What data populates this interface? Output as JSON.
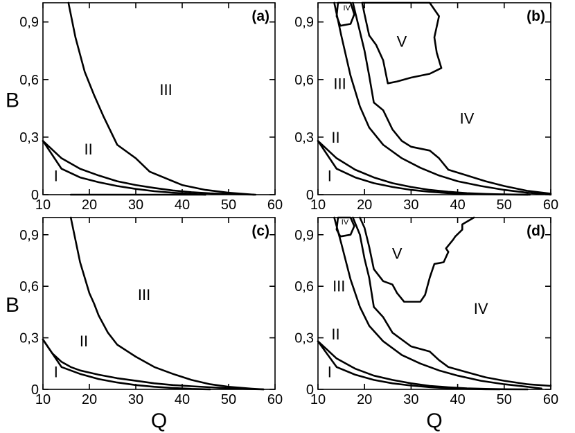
{
  "chart_data": [
    {
      "type": "line",
      "panel_label": "(a)",
      "xlim": [
        10,
        60
      ],
      "ylim": [
        0,
        1.0
      ],
      "xticks": [
        "10",
        "20",
        "30",
        "40",
        "50",
        "60"
      ],
      "yticks": [
        "0",
        "0,3",
        "0,6",
        "0,9"
      ],
      "xlabel": "",
      "ylabel": "B",
      "regions": [
        {
          "label": "I",
          "x": 12.8,
          "y": 0.07
        },
        {
          "label": "II",
          "x": 19.8,
          "y": 0.21
        },
        {
          "label": "III",
          "x": 36.5,
          "y": 0.52
        }
      ],
      "series": [
        {
          "x": [
            16.0,
            25.0,
            35.0,
            45.0
          ],
          "y": [
            0.0,
            0.0,
            0.0,
            0.0
          ]
        },
        {
          "x": [
            10.0,
            14.0,
            18.0,
            22.0,
            26.0,
            30.0,
            34.0,
            38.0,
            42.0,
            46.0,
            50.0,
            55.8
          ],
          "y": [
            0.28,
            0.19,
            0.135,
            0.1,
            0.07,
            0.05,
            0.035,
            0.022,
            0.013,
            0.007,
            0.003,
            0.0
          ]
        },
        {
          "x": [
            10.0,
            14.0,
            18.0,
            22.0,
            26.0,
            30.0,
            34.0,
            38.0,
            42.0,
            45.0
          ],
          "y": [
            0.28,
            0.135,
            0.09,
            0.065,
            0.045,
            0.03,
            0.018,
            0.01,
            0.004,
            0.0
          ]
        },
        {
          "x": [
            15.5,
            17.0,
            19.0,
            21.0,
            23.0,
            26.0,
            30.0,
            33.0,
            36.0,
            40.0,
            45.0,
            50.0,
            55.5
          ],
          "y": [
            1.0,
            0.82,
            0.64,
            0.52,
            0.41,
            0.26,
            0.19,
            0.12,
            0.09,
            0.05,
            0.025,
            0.01,
            0.0
          ]
        }
      ]
    },
    {
      "type": "line",
      "panel_label": "(b)",
      "xlim": [
        10,
        60
      ],
      "ylim": [
        0,
        1.0
      ],
      "xticks": [
        "10",
        "20",
        "30",
        "40",
        "50",
        "60"
      ],
      "yticks": [
        "0",
        "0,3",
        "0,6",
        "0,9"
      ],
      "xlabel": "",
      "ylabel": "",
      "regions": [
        {
          "label": "I",
          "x": 12.5,
          "y": 0.07
        },
        {
          "label": "II",
          "x": 13.8,
          "y": 0.27
        },
        {
          "label": "III",
          "x": 14.7,
          "y": 0.55
        },
        {
          "label": "IV",
          "x": 42.0,
          "y": 0.37
        },
        {
          "label": "IV",
          "x": 16.2,
          "y": 0.96
        },
        {
          "label": "V",
          "x": 28.0,
          "y": 0.77
        }
      ],
      "series": [
        {
          "x": [
            10.0,
            14.0,
            18.0,
            22.0,
            26.0,
            30.0,
            34.0,
            38.0,
            42.0,
            46.0,
            50.0,
            55.5
          ],
          "y": [
            0.28,
            0.19,
            0.13,
            0.09,
            0.06,
            0.04,
            0.025,
            0.015,
            0.008,
            0.004,
            0.001,
            0.0
          ]
        },
        {
          "x": [
            10.0,
            14.0,
            18.0,
            22.0,
            26.0,
            30.0,
            34.0,
            38.0,
            42.0,
            46.0,
            50.0,
            55.0
          ],
          "y": [
            0.28,
            0.135,
            0.09,
            0.06,
            0.04,
            0.025,
            0.015,
            0.008,
            0.004,
            0.002,
            0.001,
            0.0
          ]
        },
        {
          "x": [
            13.5,
            15.0,
            17.0,
            19.0,
            21.0,
            24.0,
            28.0,
            32.0,
            36.0,
            40.0,
            45.0,
            50.0,
            55.0,
            60.0
          ],
          "y": [
            1.0,
            0.83,
            0.62,
            0.46,
            0.35,
            0.26,
            0.19,
            0.14,
            0.1,
            0.07,
            0.045,
            0.025,
            0.01,
            0.0
          ]
        },
        {
          "x": [
            17.5,
            19.0,
            20.0,
            21.0,
            22.0,
            24.0,
            26.0,
            28.0,
            30.0,
            34.0,
            36.0,
            38.0,
            42.0,
            46.0,
            50.0,
            55.0,
            60.0
          ],
          "y": [
            1.0,
            0.85,
            0.75,
            0.62,
            0.48,
            0.44,
            0.34,
            0.28,
            0.25,
            0.23,
            0.19,
            0.13,
            0.1,
            0.07,
            0.045,
            0.02,
            0.005
          ]
        },
        {
          "x": [
            19.5,
            20.0,
            21.0,
            22.5,
            24.0,
            25.0,
            27.0,
            30.0,
            34.0,
            36.5,
            35.5,
            35.0,
            36.0,
            34.0,
            19.5
          ],
          "y": [
            1.0,
            0.94,
            0.83,
            0.78,
            0.7,
            0.58,
            0.59,
            0.61,
            0.63,
            0.66,
            0.74,
            0.82,
            0.93,
            1.0,
            1.0
          ]
        },
        {
          "x": [
            14.3,
            14.0,
            14.8,
            17.0,
            17.8,
            17.0,
            14.3
          ],
          "y": [
            1.0,
            0.93,
            0.88,
            0.89,
            0.94,
            1.0,
            1.0
          ]
        }
      ]
    },
    {
      "type": "line",
      "panel_label": "(c)",
      "xlim": [
        10,
        60
      ],
      "ylim": [
        0,
        1.0
      ],
      "xticks": [
        "10",
        "20",
        "30",
        "40",
        "50",
        "60"
      ],
      "yticks": [
        "0",
        "0,3",
        "0,6",
        "0,9"
      ],
      "xlabel": "Q",
      "ylabel": "B",
      "regions": [
        {
          "label": "I",
          "x": 12.8,
          "y": 0.07
        },
        {
          "label": "II",
          "x": 18.8,
          "y": 0.25
        },
        {
          "label": "III",
          "x": 31.8,
          "y": 0.52
        }
      ],
      "series": [
        {
          "x": [
            10.0,
            12.0,
            14.0,
            16.0,
            18.0,
            22.0,
            26.0,
            30.0,
            34.0,
            38.0,
            42.0,
            46.0,
            50.0,
            54.0,
            57.5
          ],
          "y": [
            0.29,
            0.21,
            0.16,
            0.13,
            0.11,
            0.085,
            0.065,
            0.05,
            0.035,
            0.025,
            0.018,
            0.012,
            0.006,
            0.002,
            0.0
          ]
        },
        {
          "x": [
            10.0,
            14.0,
            18.0,
            22.0,
            26.0,
            30.0,
            34.0,
            38.0,
            42.0,
            46.0
          ],
          "y": [
            0.29,
            0.13,
            0.09,
            0.06,
            0.04,
            0.025,
            0.015,
            0.008,
            0.003,
            0.0
          ]
        },
        {
          "x": [
            16.0,
            18.0,
            20.0,
            21.0,
            22.0,
            24.0,
            26.0,
            30.0,
            34.0,
            38.0,
            42.0,
            46.0,
            50.0,
            55.0,
            57.5
          ],
          "y": [
            1.0,
            0.74,
            0.56,
            0.5,
            0.43,
            0.33,
            0.26,
            0.19,
            0.13,
            0.09,
            0.055,
            0.03,
            0.015,
            0.004,
            0.0
          ]
        }
      ]
    },
    {
      "type": "line",
      "panel_label": "(d)",
      "xlim": [
        10,
        60
      ],
      "ylim": [
        0,
        1.0
      ],
      "xticks": [
        "10",
        "20",
        "30",
        "40",
        "50",
        "60"
      ],
      "yticks": [
        "0",
        "0,3",
        "0,6",
        "0,9"
      ],
      "xlabel": "Q",
      "ylabel": "",
      "regions": [
        {
          "label": "I",
          "x": 12.5,
          "y": 0.07
        },
        {
          "label": "II",
          "x": 13.8,
          "y": 0.29
        },
        {
          "label": "III",
          "x": 14.5,
          "y": 0.57
        },
        {
          "label": "IV",
          "x": 45.0,
          "y": 0.44
        },
        {
          "label": "IV",
          "x": 15.8,
          "y": 0.96
        },
        {
          "label": "V",
          "x": 27.0,
          "y": 0.76
        }
      ],
      "series": [
        {
          "x": [
            10.0,
            14.0,
            18.0,
            22.0,
            26.0,
            30.0,
            34.0,
            38.0,
            42.0,
            46.0,
            50.0,
            55.0
          ],
          "y": [
            0.28,
            0.18,
            0.12,
            0.08,
            0.055,
            0.035,
            0.02,
            0.012,
            0.006,
            0.003,
            0.001,
            0.0
          ]
        },
        {
          "x": [
            10.0,
            14.0,
            18.0,
            22.0,
            26.0,
            30.0,
            34.0,
            38.0,
            42.0,
            46.0,
            49.0
          ],
          "y": [
            0.28,
            0.13,
            0.085,
            0.055,
            0.035,
            0.022,
            0.013,
            0.007,
            0.003,
            0.001,
            0.0
          ]
        },
        {
          "x": [
            13.5,
            15.0,
            17.0,
            19.0,
            21.0,
            24.0,
            28.0,
            32.0,
            36.0,
            40.0,
            45.0,
            50.0,
            55.0,
            58.0
          ],
          "y": [
            1.0,
            0.85,
            0.64,
            0.48,
            0.37,
            0.28,
            0.2,
            0.15,
            0.11,
            0.08,
            0.05,
            0.03,
            0.015,
            0.005
          ]
        },
        {
          "x": [
            17.5,
            19.0,
            20.0,
            21.0,
            22.0,
            24.0,
            26.0,
            30.0,
            34.0,
            36.0,
            38.0,
            42.0,
            46.0,
            50.0,
            55.0,
            60.0
          ],
          "y": [
            1.0,
            0.9,
            0.76,
            0.65,
            0.48,
            0.42,
            0.33,
            0.25,
            0.22,
            0.17,
            0.13,
            0.1,
            0.07,
            0.05,
            0.03,
            0.02
          ]
        },
        {
          "x": [
            19.0,
            20.0,
            21.0,
            22.0,
            24.0,
            26.0,
            27.0,
            28.5,
            30.0,
            32.0,
            33.0,
            34.0,
            35.0,
            37.0,
            38.0,
            37.5,
            39.0,
            39.5,
            41.0,
            41.0,
            43.5
          ],
          "y": [
            1.0,
            0.94,
            0.83,
            0.7,
            0.63,
            0.61,
            0.56,
            0.51,
            0.51,
            0.51,
            0.55,
            0.65,
            0.73,
            0.74,
            0.8,
            0.82,
            0.87,
            0.89,
            0.93,
            0.96,
            1.0
          ]
        },
        {
          "x": [
            14.3,
            14.0,
            14.8,
            17.0,
            17.8,
            17.0,
            14.3
          ],
          "y": [
            1.0,
            0.93,
            0.89,
            0.9,
            0.95,
            1.0,
            1.0
          ]
        }
      ]
    }
  ]
}
